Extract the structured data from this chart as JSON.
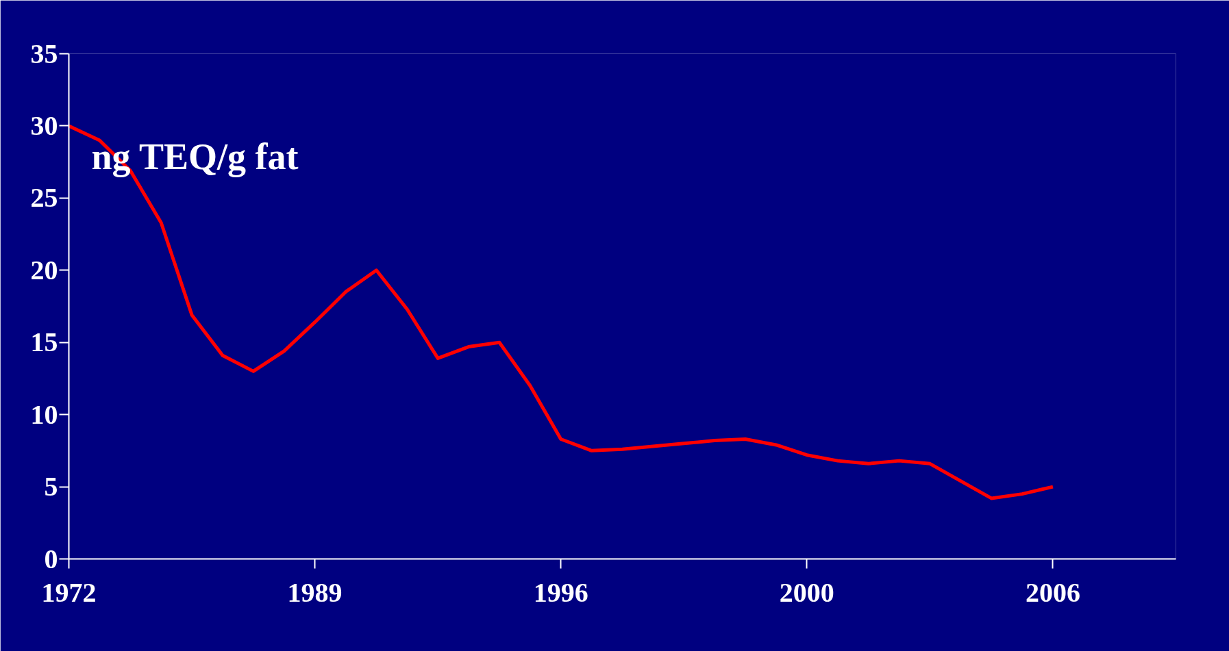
{
  "chart_data": {
    "type": "line",
    "ylabel": "ng TEQ/g fat",
    "categories": [
      "1972",
      null,
      null,
      null,
      null,
      null,
      null,
      null,
      "1989",
      null,
      null,
      null,
      null,
      null,
      null,
      null,
      "1996",
      null,
      null,
      null,
      null,
      null,
      null,
      null,
      "2000",
      null,
      null,
      null,
      null,
      null,
      null,
      null,
      "2006",
      null,
      null,
      null,
      null
    ],
    "series": [
      {
        "color": "#ff0000",
        "values": [
          30.0,
          29.0,
          26.9,
          23.3,
          16.9,
          14.1,
          13.0,
          14.4,
          16.4,
          18.5,
          20.0,
          17.3,
          13.9,
          14.7,
          15.0,
          12.0,
          8.3,
          7.5,
          7.6,
          7.8,
          8.0,
          8.2,
          8.3,
          7.9,
          7.2,
          6.8,
          6.6,
          6.8,
          6.6,
          5.4,
          4.2,
          4.5,
          5.0,
          null,
          null,
          null,
          null
        ]
      }
    ],
    "ylim": [
      0,
      35
    ],
    "yticks": [
      0,
      5,
      10,
      15,
      20,
      25,
      30,
      35
    ],
    "grid": false,
    "marker": "none",
    "line_style": "solid"
  }
}
